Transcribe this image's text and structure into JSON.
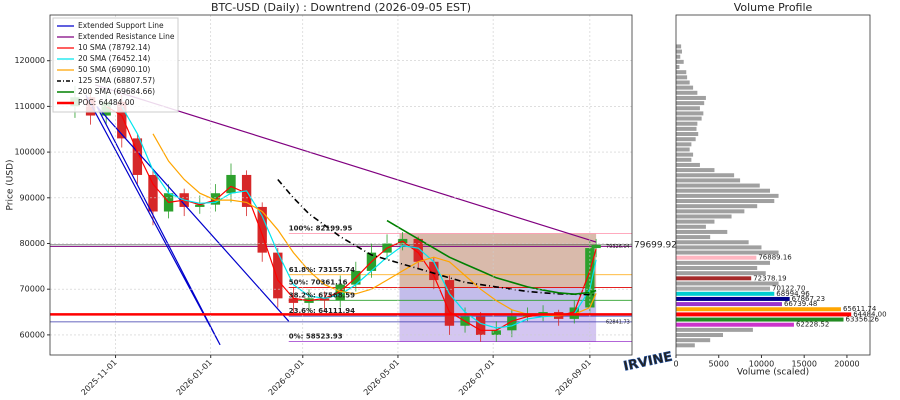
{
  "chart_data": [
    {
      "type": "candlestick",
      "title": "BTC-USD (Daily) : Downtrend (2026-09-05 EST)",
      "ylabel": "Price (USD)",
      "xlim": [
        "2025-09-20",
        "2026-09-28"
      ],
      "xticks": [
        "2025-11-01",
        "2026-01-01",
        "2026-03-01",
        "2026-05-01",
        "2026-07-01",
        "2026-09-01"
      ],
      "ylim": [
        55600,
        130000
      ],
      "yticks": [
        60000,
        70000,
        80000,
        90000,
        100000,
        110000,
        120000
      ],
      "grid": true,
      "up_color": "#2ca02c",
      "down_color": "#d62728",
      "x": [
        "2025-10-06",
        "2025-10-16",
        "2025-10-26",
        "2025-11-05",
        "2025-11-15",
        "2025-11-25",
        "2025-12-05",
        "2025-12-15",
        "2025-12-25",
        "2026-01-04",
        "2026-01-14",
        "2026-01-24",
        "2026-02-03",
        "2026-02-13",
        "2026-02-23",
        "2026-03-05",
        "2026-03-15",
        "2026-03-25",
        "2026-04-04",
        "2026-04-14",
        "2026-04-24",
        "2026-05-04",
        "2026-05-14",
        "2026-05-24",
        "2026-06-03",
        "2026-06-13",
        "2026-06-23",
        "2026-07-03",
        "2026-07-13",
        "2026-07-23",
        "2026-08-02",
        "2026-08-12",
        "2026-08-22",
        "2026-09-01",
        "2026-09-05"
      ],
      "open": [
        110000,
        112000,
        108000,
        111000,
        103000,
        95000,
        87000,
        91000,
        88000,
        88500,
        91000,
        95000,
        88000,
        78000,
        68000,
        67000,
        68000,
        67500,
        71000,
        74000,
        78000,
        80000,
        81000,
        76000,
        72000,
        62000,
        64000,
        60000,
        61000,
        64000,
        64500,
        65000,
        63500,
        66000,
        79000
      ],
      "high": [
        114500,
        114000,
        113000,
        112500,
        104000,
        96000,
        93000,
        92000,
        90500,
        93000,
        97500,
        96000,
        89000,
        79000,
        70500,
        70000,
        69500,
        73000,
        76000,
        80000,
        82000,
        82500,
        81500,
        77000,
        73000,
        66000,
        65000,
        63000,
        65500,
        66000,
        66500,
        65500,
        67500,
        80500,
        81000
      ],
      "low": [
        107500,
        106000,
        106000,
        101000,
        93000,
        84000,
        85500,
        86000,
        86500,
        87000,
        89000,
        86000,
        76000,
        66000,
        64500,
        65000,
        65000,
        66000,
        69500,
        72500,
        76500,
        78500,
        74500,
        70000,
        60000,
        60500,
        58500,
        58500,
        59500,
        63000,
        63000,
        62000,
        62500,
        64500,
        77000
      ],
      "close": [
        112000,
        108000,
        111000,
        103000,
        95000,
        87000,
        91000,
        88000,
        88500,
        91000,
        95000,
        88000,
        78000,
        68000,
        67000,
        68000,
        67500,
        71000,
        74000,
        78000,
        80000,
        81000,
        76000,
        72000,
        62000,
        64000,
        60000,
        61000,
        64000,
        64500,
        65000,
        63500,
        66000,
        79000,
        79700
      ],
      "zones": [
        {
          "from": "2026-05-02",
          "to": "2026-09-05",
          "low": 70361.16,
          "high": 82199.95,
          "color": "#a0522d"
        },
        {
          "from": "2026-05-02",
          "to": "2026-09-05",
          "low": 64111.94,
          "high": 70361.16,
          "color": "#6a5acd"
        },
        {
          "from": "2026-05-02",
          "to": "2026-09-05",
          "low": 58523.93,
          "high": 64111.94,
          "color": "#9370db"
        }
      ],
      "fib_levels": [
        {
          "label": "100%: 82199.95",
          "value": 82199.95,
          "color": "#ff9eb5",
          "from": "2026-02-20"
        },
        {
          "label": "61.8%: 73155.74",
          "value": 73155.74,
          "color": "#ffa500",
          "from": "2026-02-20"
        },
        {
          "label": "50%: 70361.16",
          "value": 70361.16,
          "color": "#e00000",
          "from": "2026-02-20"
        },
        {
          "label": "38.2%: 67568.59",
          "value": 67568.59,
          "color": "#2ca02c",
          "from": "2026-02-20"
        },
        {
          "label": "23.6%: 64111.94",
          "value": 64111.94,
          "color": "#1f3fbf",
          "from": "2026-02-20"
        },
        {
          "label": "0%: 58523.93",
          "value": 58523.93,
          "color": "#9932cc",
          "from": "2026-02-20"
        }
      ],
      "price_lines": [
        {
          "value": 79699.92,
          "color": "#444444"
        },
        {
          "value": 79326.04,
          "color": "#800080"
        },
        {
          "value": 62841.73,
          "color": "#3333aa"
        }
      ],
      "lines": [
        {
          "name": "Extended Support Line",
          "color": "#0000cc",
          "width": 1.2,
          "x": [
            "2025-10-13",
            "2026-01-07",
            "2025-10-20",
            "2026-02-20"
          ],
          "values": [
            112500,
            57800,
            110000,
            63000
          ]
        },
        {
          "name": "Extended Resistance Line",
          "color": "#800080",
          "width": 1.2,
          "x": [
            "2025-10-19",
            "2026-09-05"
          ],
          "values": [
            114700,
            80300
          ]
        },
        {
          "name": "10 SMA (78792.14)",
          "color": "#ff0000",
          "width": 1.2,
          "values": [
            null,
            null,
            110000,
            108000,
            100000,
            93000,
            89000,
            89500,
            88500,
            89500,
            92500,
            91000,
            82000,
            72000,
            68000,
            67500,
            68000,
            69500,
            72500,
            76000,
            79000,
            80500,
            78000,
            73000,
            65000,
            63000,
            61000,
            61000,
            63000,
            64000,
            64500,
            64200,
            65000,
            74000,
            78792.14
          ]
        },
        {
          "name": "20 SMA (76452.14)",
          "color": "#00e5ee",
          "width": 1.2,
          "values": [
            null,
            null,
            null,
            110000,
            104000,
            96000,
            91000,
            89500,
            88800,
            89000,
            91000,
            91500,
            86000,
            78000,
            71000,
            68500,
            68000,
            68800,
            71000,
            74000,
            77000,
            79500,
            79000,
            76000,
            69000,
            65000,
            62500,
            61500,
            62000,
            63500,
            64000,
            64200,
            64600,
            70000,
            76452.14
          ]
        },
        {
          "name": "50 SMA (69090.10)",
          "color": "#ffa500",
          "width": 1.2,
          "values": [
            null,
            null,
            null,
            null,
            null,
            104000,
            98000,
            94000,
            91000,
            89500,
            89500,
            89000,
            87000,
            83000,
            78000,
            74000,
            71000,
            69500,
            69000,
            70000,
            72000,
            74000,
            76000,
            77000,
            76000,
            73000,
            70000,
            67500,
            65500,
            64500,
            64300,
            64200,
            64500,
            66000,
            69090.1
          ]
        },
        {
          "name": "125 SMA (68807.57)",
          "color": "#000000",
          "width": 1.6,
          "dash": true,
          "values": [
            null,
            null,
            null,
            null,
            null,
            null,
            null,
            null,
            null,
            null,
            null,
            null,
            null,
            94000,
            90000,
            86500,
            84000,
            81500,
            79500,
            77500,
            76500,
            75500,
            74500,
            73500,
            72500,
            71500,
            71000,
            70500,
            70000,
            69500,
            69200,
            69000,
            68900,
            68800,
            68807.57
          ]
        },
        {
          "name": "200 SMA (69684.66)",
          "color": "#008000",
          "width": 1.6,
          "values": [
            null,
            null,
            null,
            null,
            null,
            null,
            null,
            null,
            null,
            null,
            null,
            null,
            null,
            null,
            null,
            null,
            null,
            null,
            null,
            null,
            85000,
            83000,
            81000,
            79000,
            77000,
            75500,
            74000,
            72500,
            71500,
            70500,
            69800,
            69200,
            68900,
            69300,
            69684.66
          ]
        },
        {
          "name": "POC: 64484.00",
          "color": "#ff0000",
          "width": 2.5,
          "level": 64484
        }
      ],
      "watermark": "IRVINE"
    },
    {
      "type": "volume_profile",
      "title": "Volume Profile",
      "xlabel": "Volume (scaled)",
      "xlim": [
        0,
        22700
      ],
      "xticks": [
        0,
        5000,
        10000,
        15000,
        20000
      ],
      "ylim": [
        55600,
        130000
      ],
      "color": "#a0a0a0",
      "levels": [
        57717.56,
        58845.3,
        59973.04,
        61100.78,
        62228.52,
        63356.26,
        64484.0,
        65611.74,
        66739.48,
        67867.23,
        68994.96,
        70122.7,
        71250.44,
        72378.19,
        73505.92,
        74633.66,
        75761.4,
        76889.16,
        78016.88,
        79144.62,
        80272.36,
        81400.1,
        82527.84,
        83655.58,
        84783.32,
        85911.06,
        87038.8,
        88166.54,
        89294.28,
        90422.02,
        91549.76,
        92677.5,
        93805.24,
        94932.98,
        96060.72,
        97188.46,
        98316.2,
        99443.94,
        100571.68,
        101699.42,
        102827.16,
        103954.9,
        105082.64,
        106210.38,
        107338.12,
        108465.86,
        109593.6,
        110721.34,
        111849.08,
        112976.82,
        114104.56,
        115232.3,
        116360.04,
        117487.78,
        118615.52,
        119743.26,
        120871.0,
        121998.74,
        123126.48
      ],
      "values": [
        2200,
        4000,
        5500,
        9000,
        13800,
        19600,
        20500,
        19300,
        12400,
        13300,
        11500,
        11000,
        12000,
        8800,
        10500,
        9500,
        11000,
        9400,
        12000,
        10000,
        8500,
        4000,
        6000,
        3500,
        4500,
        6500,
        8000,
        9500,
        11500,
        12000,
        11000,
        9800,
        7500,
        6800,
        4500,
        2800,
        1800,
        2000,
        1600,
        1800,
        2300,
        2600,
        2400,
        2500,
        3000,
        3200,
        2800,
        3300,
        3500,
        2500,
        2000,
        1600,
        1300,
        1200,
        400,
        900,
        500,
        700,
        600
      ],
      "level_labels": [
        null,
        null,
        null,
        null,
        "62228.52",
        "63356.26",
        "64484.00",
        "65611.74",
        "66739.48",
        "67867.23",
        "68994.96",
        "70122.70",
        null,
        "72378.19",
        null,
        null,
        null,
        "76889.16",
        null,
        null,
        null,
        null,
        null,
        null,
        null,
        null,
        null,
        null,
        null,
        null,
        null,
        null,
        null,
        null,
        null,
        null,
        null,
        null,
        null,
        null,
        null,
        null,
        null,
        null,
        null,
        null,
        null,
        null,
        null,
        null,
        null,
        null,
        null,
        null,
        null,
        null,
        null,
        null,
        null
      ],
      "level_colors": [
        null,
        null,
        null,
        null,
        "#cc33cc",
        "#228b22",
        "#ff0000",
        "#ffa500",
        "#9932cc",
        "#00008b",
        "#00ced1",
        "#a9a9a9",
        null,
        "#a52a2a",
        null,
        null,
        null,
        "#ffb6c1",
        null,
        null,
        null,
        null,
        null,
        null,
        null,
        null,
        null,
        null,
        null,
        null,
        null,
        null,
        null,
        null,
        null,
        null,
        null,
        null,
        null,
        null,
        null,
        null,
        null,
        null,
        null,
        null,
        null,
        null,
        null,
        null,
        null,
        null,
        null,
        null,
        null,
        null,
        null,
        null,
        null
      ]
    }
  ]
}
